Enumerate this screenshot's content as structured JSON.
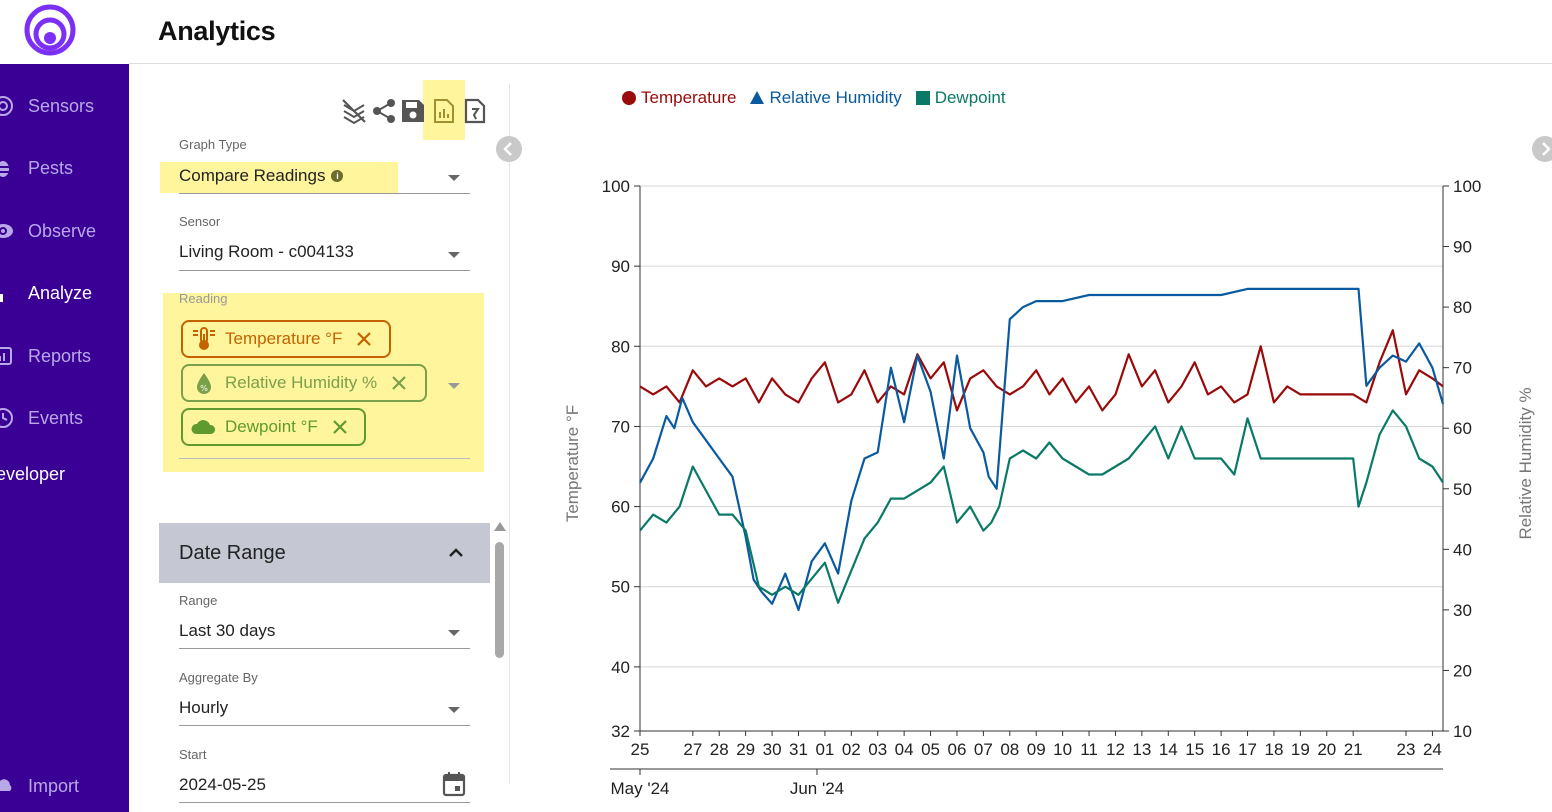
{
  "app": {
    "title": "Analytics"
  },
  "colors": {
    "sidebar": "#3a0096",
    "brand": "#7b2ff7",
    "temperature": "#9a0a0a",
    "humidity": "#0a5aa0",
    "dewpoint": "#0a7a66",
    "highlight": "#fff59d"
  },
  "sidebar": {
    "items": [
      {
        "label": "Sensors",
        "icon": "sensors-icon"
      },
      {
        "label": "Pests",
        "icon": "bug-icon"
      },
      {
        "label": "Observe",
        "icon": "eye-icon"
      },
      {
        "label": "Analyze",
        "icon": "bar-chart-icon"
      },
      {
        "label": "Reports",
        "icon": "report-icon"
      },
      {
        "label": "Events",
        "icon": "clock-icon"
      }
    ],
    "developer_label": "eveloper",
    "import_label": "Import"
  },
  "controls": {
    "graph_type": {
      "label": "Graph Type",
      "value": "Compare Readings"
    },
    "sensor": {
      "label": "Sensor",
      "value": "Living Room - c004133"
    },
    "reading": {
      "label": "Reading",
      "chips": [
        "Temperature °F",
        "Relative Humidity %",
        "Dewpoint °F"
      ]
    },
    "date_range": {
      "title": "Date Range",
      "range": {
        "label": "Range",
        "value": "Last 30 days"
      },
      "aggregate": {
        "label": "Aggregate By",
        "value": "Hourly"
      },
      "start": {
        "label": "Start",
        "value": "2024-05-25"
      }
    }
  },
  "chart_data": {
    "type": "line",
    "legend": [
      "Temperature",
      "Relative Humidity",
      "Dewpoint"
    ],
    "y_left": {
      "label": "Temperature °F",
      "ticks": [
        "100",
        "90",
        "80",
        "70",
        "60",
        "50",
        "40",
        "32"
      ],
      "range": [
        32,
        100
      ]
    },
    "y_right": {
      "label": "Relative Humidity %",
      "ticks": [
        "100",
        "90",
        "80",
        "70",
        "60",
        "50",
        "40",
        "30",
        "20",
        "10"
      ],
      "range": [
        10,
        100
      ]
    },
    "x_ticks": [
      "25",
      "27",
      "28",
      "29",
      "30",
      "31",
      "01",
      "02",
      "03",
      "04",
      "05",
      "06",
      "07",
      "08",
      "09",
      "10",
      "11",
      "12",
      "13",
      "14",
      "15",
      "16",
      "17",
      "18",
      "19",
      "20",
      "21",
      "23",
      "24"
    ],
    "x_tick_days": [
      0,
      2,
      3,
      4,
      5,
      6,
      7,
      8,
      9,
      10,
      11,
      12,
      13,
      14,
      15,
      16,
      17,
      18,
      19,
      20,
      21,
      22,
      23,
      24,
      25,
      26,
      27,
      29,
      30
    ],
    "x_domain": [
      0,
      30.4
    ],
    "month_labels": [
      {
        "label": "May '24",
        "day": 0
      },
      {
        "label": "Jun '24",
        "day": 6.7
      }
    ],
    "series": [
      {
        "name": "Temperature",
        "axis": "left",
        "x": [
          0,
          0.5,
          1,
          1.5,
          2,
          2.5,
          3,
          3.5,
          4,
          4.5,
          5,
          5.5,
          6,
          6.5,
          7,
          7.5,
          8,
          8.5,
          9,
          9.5,
          10,
          10.5,
          11,
          11.5,
          12,
          12.5,
          13,
          13.5,
          14,
          14.5,
          15,
          15.5,
          16,
          16.5,
          17,
          17.5,
          18,
          18.5,
          19,
          19.5,
          20,
          20.5,
          21,
          21.5,
          22,
          22.5,
          23,
          23.5,
          24,
          24.5,
          25,
          25.5,
          26,
          26.5,
          27,
          27.5,
          28,
          28.5,
          29,
          29.5,
          30,
          30.4
        ],
        "values": [
          75,
          74,
          75,
          73,
          77,
          75,
          76,
          75,
          76,
          73,
          76,
          74,
          73,
          76,
          78,
          73,
          74,
          77,
          73,
          75,
          74,
          79,
          76,
          78,
          72,
          76,
          77,
          75,
          74,
          75,
          77,
          74,
          76,
          73,
          75,
          72,
          74,
          79,
          75,
          77,
          73,
          75,
          78,
          74,
          75,
          73,
          74,
          80,
          73,
          75,
          74,
          74,
          74,
          74,
          74,
          73,
          78,
          82,
          74,
          77,
          76,
          75
        ]
      },
      {
        "name": "Relative Humidity",
        "axis": "right",
        "x": [
          0,
          0.5,
          1,
          1.3,
          1.6,
          2,
          2.5,
          3,
          3.5,
          4,
          4.3,
          4.6,
          5,
          5.5,
          6,
          6.5,
          7,
          7.5,
          8,
          8.5,
          9,
          9.5,
          10,
          10.5,
          11,
          11.5,
          12,
          12.5,
          13,
          13.2,
          13.5,
          14,
          14.5,
          15,
          16,
          17,
          18,
          19,
          20,
          21,
          22,
          23,
          24,
          25,
          26,
          27,
          27.2,
          27.5,
          28,
          28.5,
          29,
          29.5,
          30,
          30.4
        ],
        "values": [
          51,
          55,
          62,
          60,
          65,
          61,
          58,
          55,
          52,
          42,
          35,
          33,
          31,
          36,
          30,
          38,
          41,
          36,
          48,
          55,
          56,
          70,
          61,
          72,
          66,
          55,
          72,
          60,
          56,
          52,
          50,
          78,
          80,
          81,
          81,
          82,
          82,
          82,
          82,
          82,
          82,
          83,
          83,
          83,
          83,
          83,
          83,
          67,
          70,
          72,
          71,
          74,
          70,
          64
        ]
      },
      {
        "name": "Dewpoint",
        "axis": "left",
        "x": [
          0,
          0.5,
          1,
          1.5,
          2,
          2.5,
          3,
          3.5,
          4,
          4.5,
          5,
          5.5,
          6,
          6.5,
          7,
          7.5,
          8,
          8.5,
          9,
          9.5,
          10,
          10.5,
          11,
          11.5,
          12,
          12.5,
          13,
          13.3,
          13.6,
          14,
          14.5,
          15,
          15.5,
          16,
          16.5,
          17,
          17.5,
          18,
          18.5,
          19,
          19.5,
          20,
          20.5,
          21,
          21.5,
          22,
          22.5,
          23,
          23.5,
          24,
          24.5,
          25,
          25.5,
          26,
          26.5,
          27,
          27.2,
          27.5,
          28,
          28.5,
          29,
          29.5,
          30,
          30.4
        ],
        "values": [
          57,
          59,
          58,
          60,
          65,
          62,
          59,
          59,
          57,
          50,
          49,
          50,
          49,
          51,
          53,
          48,
          52,
          56,
          58,
          61,
          61,
          62,
          63,
          65,
          58,
          60,
          57,
          58,
          60,
          66,
          67,
          66,
          68,
          66,
          65,
          64,
          64,
          65,
          66,
          68,
          70,
          66,
          70,
          66,
          66,
          66,
          64,
          71,
          66,
          66,
          66,
          66,
          66,
          66,
          66,
          66,
          60,
          63,
          69,
          72,
          70,
          66,
          65,
          63
        ]
      }
    ]
  }
}
